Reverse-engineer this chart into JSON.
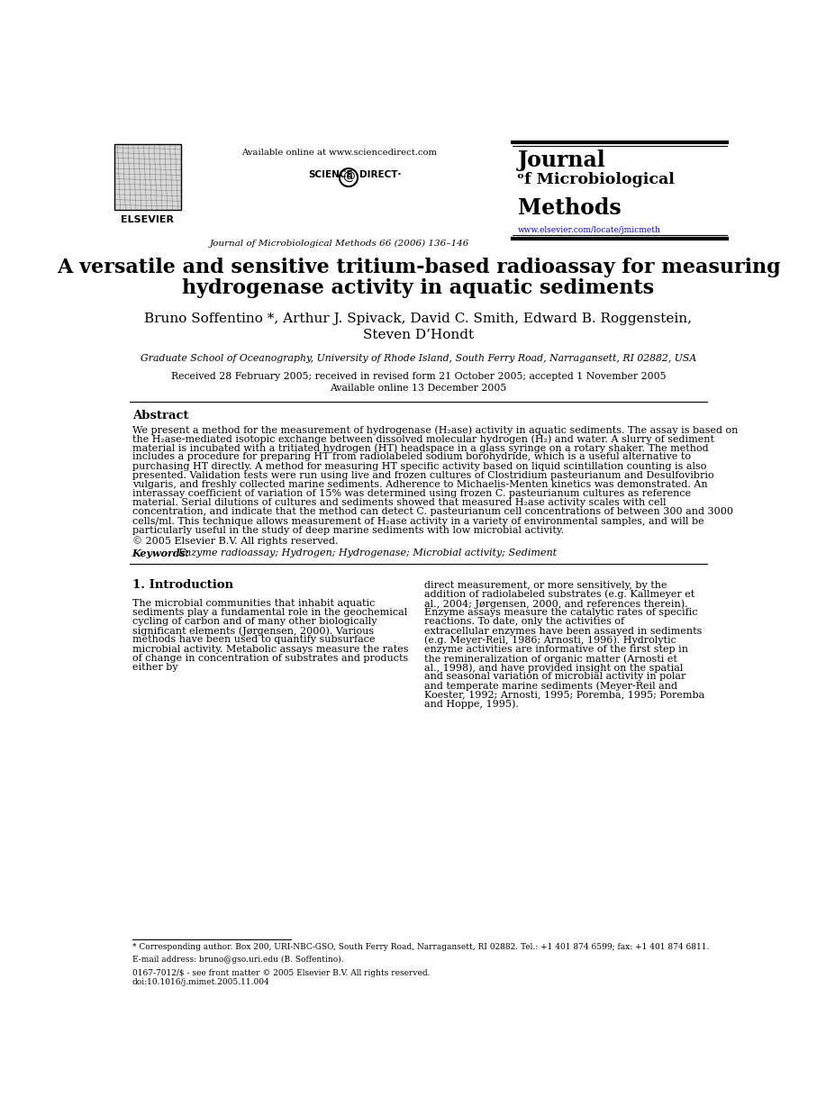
{
  "bg_color": "#ffffff",
  "title_line1": "A versatile and sensitive tritium-based radioassay for measuring",
  "title_line2": "hydrogenase activity in aquatic sediments",
  "authors": "Bruno Soffentino *, Arthur J. Spivack, David C. Smith, Edward B. Roggenstein,",
  "authors2": "Steven D’Hondt",
  "affiliation": "Graduate School of Oceanography, University of Rhode Island, South Ferry Road, Narragansett, RI 02882, USA",
  "received": "Received 28 February 2005; received in revised form 21 October 2005; accepted 1 November 2005",
  "available_online": "Available online 13 December 2005",
  "journal_header": "Journal of Microbiological Methods 66 (2006) 136–146",
  "available_online_header": "Available online at www.sciencedirect.com",
  "journal_name_line1": "Journal",
  "journal_name_line2": "ᵒf Microbiological",
  "journal_name_line3": "Methods",
  "journal_url": "www.elsevier.com/locate/jmicmeth",
  "elsevier_text": "ELSEVIER",
  "abstract_title": "Abstract",
  "abstract_text": "We present a method for the measurement of hydrogenase (H₂ase) activity in aquatic sediments. The assay is based on the H₂ase-mediated isotopic exchange between dissolved molecular hydrogen (H₂) and water. A slurry of sediment material is incubated with a tritiated hydrogen (HT) headspace in a glass syringe on a rotary shaker. The method includes a procedure for preparing HT from radiolabeled sodium borohydride, which is a useful alternative to purchasing HT directly. A method for measuring HT specific activity based on liquid scintillation counting is also presented. Validation tests were run using live and frozen cultures of Clostridium pasteurianum and Desulfovibrio vulgaris, and freshly collected marine sediments. Adherence to Michaelis-Menten kinetics was demonstrated. An interassay coefficient of variation of 15% was determined using frozen C. pasteurianum cultures as reference material. Serial dilutions of cultures and sediments showed that measured H₂ase activity scales with cell concentration, and indicate that the method can detect C. pasteurianum cell concentrations of between 300 and 3000 cells/ml. This technique allows measurement of H₂ase activity in a variety of environmental samples, and will be particularly useful in the study of deep marine sediments with low microbial activity.",
  "copyright": "© 2005 Elsevier B.V. All rights reserved.",
  "keywords_label": "Keywords:",
  "keywords": "Enzyme radioassay; Hydrogen; Hydrogenase; Microbial activity; Sediment",
  "intro_title": "1. Introduction",
  "intro_text_left": "The microbial communities that inhabit aquatic sediments play a fundamental role in the geochemical cycling of carbon and of many other biologically significant elements (Jørgensen, 2000). Various methods have been used to quantify subsurface microbial activity. Metabolic assays measure the rates of change in concentration of substrates and products either by",
  "intro_text_right": "direct measurement, or more sensitively, by the addition of radiolabeled substrates (e.g. Kallmeyer et al., 2004; Jørgensen, 2000, and references therein). Enzyme assays measure the catalytic rates of specific reactions. To date, only the activities of extracellular enzymes have been assayed in sediments (e.g. Meyer-Reil, 1986; Arnosti, 1996). Hydrolytic enzyme activities are informative of the first step in the remineralization of organic matter (Arnosti et al., 1998), and have provided insight on the spatial and seasonal variation of microbial activity in polar and temperate marine sediments (Meyer-Reil and Koester, 1992; Arnosti, 1995; Poremba, 1995; Poremba and Hoppe, 1995).",
  "footnote_star": "* Corresponding author. Box 200, URI-NBC-GSO, South Ferry Road, Narragansett, RI 02882. Tel.: +1 401 874 6599; fax: +1 401 874 6811.",
  "footnote_email": "E-mail address: bruno@gso.uri.edu (B. Soffentino).",
  "footnote_issn": "0167-7012/$ - see front matter © 2005 Elsevier B.V. All rights reserved.",
  "footnote_doi": "doi:10.1016/j.mimet.2005.11.004",
  "link_color": "#0000cc"
}
